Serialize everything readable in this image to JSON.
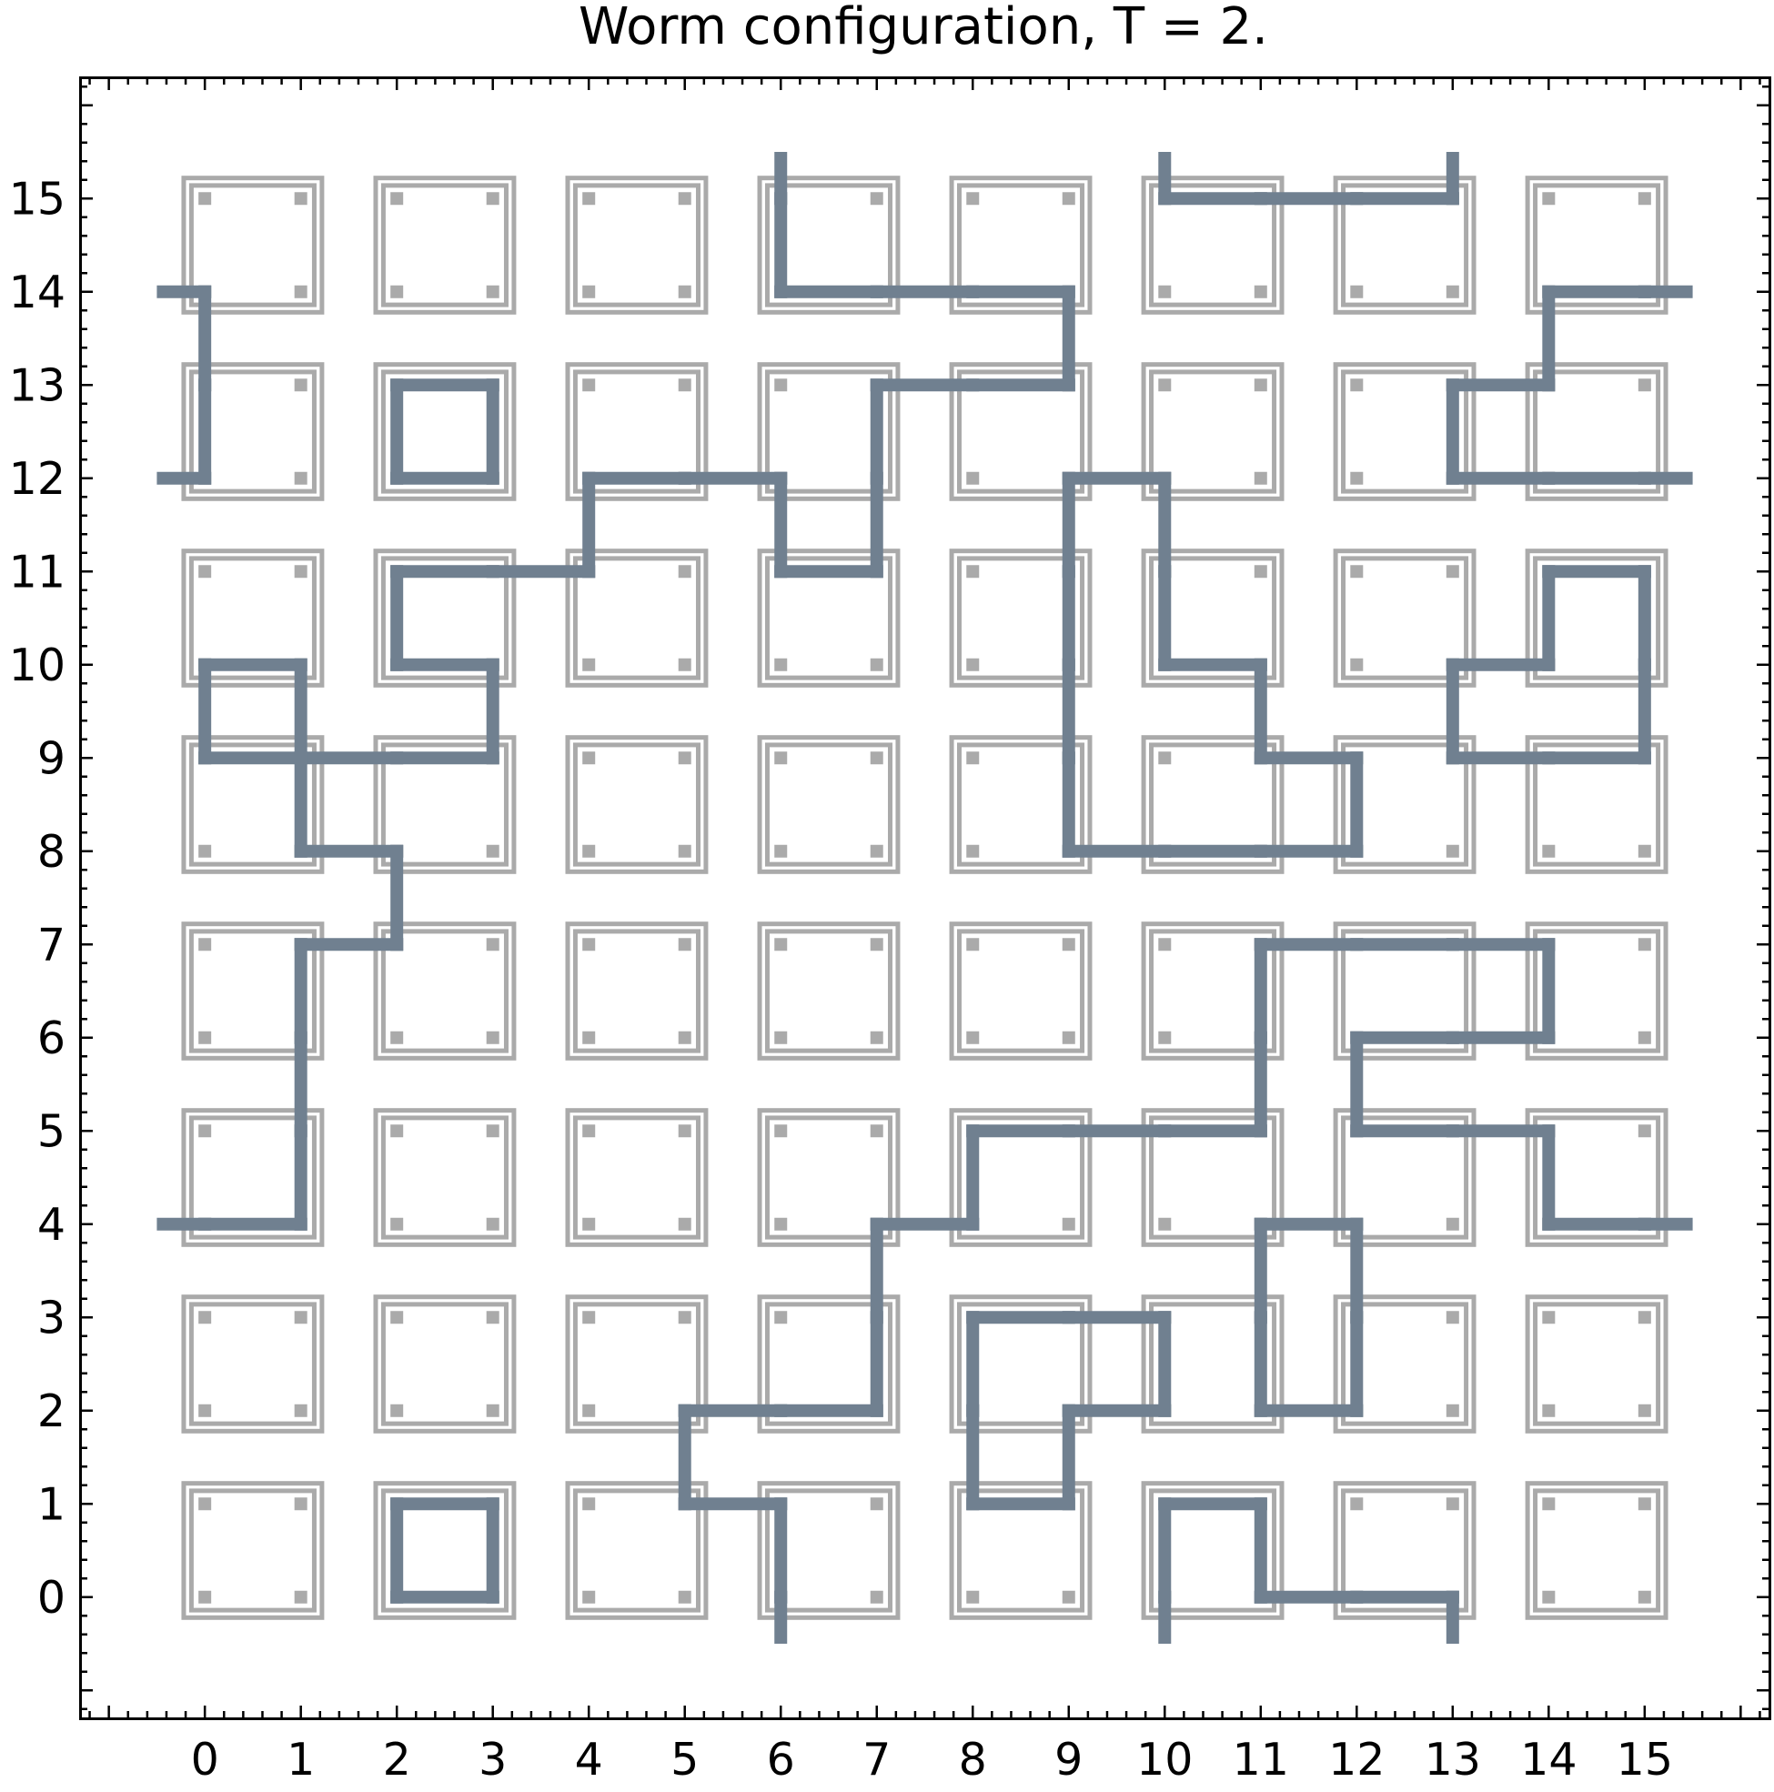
{
  "chart_data": {
    "type": "lattice-worm",
    "title": "Worm configuration, T = 2.",
    "lattice_size": 16,
    "xlim": [
      -1.3,
      16.3
    ],
    "ylim": [
      -1.3,
      16.3
    ],
    "xticks": [
      0,
      1,
      2,
      3,
      4,
      5,
      6,
      7,
      8,
      9,
      10,
      11,
      12,
      13,
      14,
      15
    ],
    "yticks": [
      0,
      1,
      2,
      3,
      4,
      5,
      6,
      7,
      8,
      9,
      10,
      11,
      12,
      13,
      14,
      15
    ],
    "xtick_labels": [
      "0",
      "1",
      "2",
      "3",
      "4",
      "5",
      "6",
      "7",
      "8",
      "9",
      "10",
      "11",
      "12",
      "13",
      "14",
      "15"
    ],
    "ytick_labels": [
      "0",
      "1",
      "2",
      "3",
      "4",
      "5",
      "6",
      "7",
      "8",
      "9",
      "10",
      "11",
      "12",
      "13",
      "14",
      "15"
    ],
    "colors": {
      "worm": "#708090",
      "plaquette": "#aaaaaa",
      "frame": "#000000"
    },
    "plaquettes": {
      "description_cells_x": [
        0,
        2,
        4,
        6,
        8,
        10,
        12,
        14
      ],
      "description_cells_y": [
        0,
        2,
        4,
        6,
        8,
        10,
        12,
        14
      ]
    },
    "worm_segments": [
      [
        [
          -0.5,
          14
        ],
        [
          0,
          14
        ]
      ],
      [
        [
          0,
          14
        ],
        [
          0,
          13
        ]
      ],
      [
        [
          0,
          13
        ],
        [
          0,
          12
        ]
      ],
      [
        [
          0,
          12
        ],
        [
          -0.5,
          12
        ]
      ],
      [
        [
          2,
          13
        ],
        [
          3,
          13
        ]
      ],
      [
        [
          3,
          13
        ],
        [
          3,
          12
        ]
      ],
      [
        [
          3,
          12
        ],
        [
          2,
          12
        ]
      ],
      [
        [
          2,
          12
        ],
        [
          2,
          13
        ]
      ],
      [
        [
          6,
          15.5
        ],
        [
          6,
          15
        ]
      ],
      [
        [
          6,
          15
        ],
        [
          6,
          14
        ]
      ],
      [
        [
          6,
          14
        ],
        [
          7,
          14
        ]
      ],
      [
        [
          7,
          14
        ],
        [
          8,
          14
        ]
      ],
      [
        [
          8,
          14
        ],
        [
          9,
          14
        ]
      ],
      [
        [
          9,
          14
        ],
        [
          9,
          13
        ]
      ],
      [
        [
          9,
          13
        ],
        [
          8,
          13
        ]
      ],
      [
        [
          8,
          13
        ],
        [
          7,
          13
        ]
      ],
      [
        [
          7,
          13
        ],
        [
          7,
          12
        ]
      ],
      [
        [
          7,
          12
        ],
        [
          7,
          11
        ]
      ],
      [
        [
          7,
          11
        ],
        [
          6,
          11
        ]
      ],
      [
        [
          6,
          11
        ],
        [
          6,
          12
        ]
      ],
      [
        [
          6,
          12
        ],
        [
          5,
          12
        ]
      ],
      [
        [
          5,
          12
        ],
        [
          4,
          12
        ]
      ],
      [
        [
          4,
          12
        ],
        [
          4,
          11
        ]
      ],
      [
        [
          4,
          11
        ],
        [
          3,
          11
        ]
      ],
      [
        [
          3,
          11
        ],
        [
          2,
          11
        ]
      ],
      [
        [
          2,
          11
        ],
        [
          2,
          10
        ]
      ],
      [
        [
          2,
          10
        ],
        [
          3,
          10
        ]
      ],
      [
        [
          3,
          10
        ],
        [
          3,
          9
        ]
      ],
      [
        [
          3,
          9
        ],
        [
          2,
          9
        ]
      ],
      [
        [
          2,
          9
        ],
        [
          1,
          9
        ]
      ],
      [
        [
          1,
          9
        ],
        [
          0,
          9
        ]
      ],
      [
        [
          0,
          9
        ],
        [
          0,
          10
        ]
      ],
      [
        [
          0,
          10
        ],
        [
          1,
          10
        ]
      ],
      [
        [
          1,
          10
        ],
        [
          1,
          9
        ]
      ],
      [
        [
          1,
          9
        ],
        [
          1,
          8
        ]
      ],
      [
        [
          1,
          8
        ],
        [
          2,
          8
        ]
      ],
      [
        [
          2,
          8
        ],
        [
          2,
          7
        ]
      ],
      [
        [
          2,
          7
        ],
        [
          1,
          7
        ]
      ],
      [
        [
          1,
          7
        ],
        [
          1,
          6
        ]
      ],
      [
        [
          1,
          6
        ],
        [
          1,
          5
        ]
      ],
      [
        [
          1,
          5
        ],
        [
          1,
          4
        ]
      ],
      [
        [
          1,
          4
        ],
        [
          0,
          4
        ]
      ],
      [
        [
          0,
          4
        ],
        [
          -0.5,
          4
        ]
      ],
      [
        [
          10,
          15.5
        ],
        [
          10,
          15
        ]
      ],
      [
        [
          10,
          15
        ],
        [
          11,
          15
        ]
      ],
      [
        [
          11,
          15
        ],
        [
          12,
          15
        ]
      ],
      [
        [
          12,
          15
        ],
        [
          13,
          15
        ]
      ],
      [
        [
          13,
          15
        ],
        [
          13,
          15.5
        ]
      ],
      [
        [
          15.5,
          14
        ],
        [
          15,
          14
        ]
      ],
      [
        [
          15,
          14
        ],
        [
          14,
          14
        ]
      ],
      [
        [
          14,
          14
        ],
        [
          14,
          13
        ]
      ],
      [
        [
          14,
          13
        ],
        [
          13,
          13
        ]
      ],
      [
        [
          13,
          13
        ],
        [
          13,
          12
        ]
      ],
      [
        [
          13,
          12
        ],
        [
          14,
          12
        ]
      ],
      [
        [
          14,
          12
        ],
        [
          15,
          12
        ]
      ],
      [
        [
          15,
          12
        ],
        [
          15.5,
          12
        ]
      ],
      [
        [
          9,
          12
        ],
        [
          10,
          12
        ]
      ],
      [
        [
          10,
          12
        ],
        [
          10,
          11
        ]
      ],
      [
        [
          10,
          11
        ],
        [
          10,
          10
        ]
      ],
      [
        [
          10,
          10
        ],
        [
          11,
          10
        ]
      ],
      [
        [
          11,
          10
        ],
        [
          11,
          9
        ]
      ],
      [
        [
          11,
          9
        ],
        [
          12,
          9
        ]
      ],
      [
        [
          12,
          9
        ],
        [
          12,
          8
        ]
      ],
      [
        [
          12,
          8
        ],
        [
          11,
          8
        ]
      ],
      [
        [
          11,
          8
        ],
        [
          10,
          8
        ]
      ],
      [
        [
          10,
          8
        ],
        [
          9,
          8
        ]
      ],
      [
        [
          9,
          8
        ],
        [
          9,
          9
        ]
      ],
      [
        [
          9,
          9
        ],
        [
          9,
          10
        ]
      ],
      [
        [
          9,
          10
        ],
        [
          9,
          11
        ]
      ],
      [
        [
          9,
          11
        ],
        [
          9,
          12
        ]
      ],
      [
        [
          14,
          11
        ],
        [
          15,
          11
        ]
      ],
      [
        [
          15,
          11
        ],
        [
          15,
          10
        ]
      ],
      [
        [
          15,
          10
        ],
        [
          15,
          9
        ]
      ],
      [
        [
          15,
          9
        ],
        [
          14,
          9
        ]
      ],
      [
        [
          14,
          9
        ],
        [
          13,
          9
        ]
      ],
      [
        [
          13,
          9
        ],
        [
          13,
          10
        ]
      ],
      [
        [
          13,
          10
        ],
        [
          14,
          10
        ]
      ],
      [
        [
          14,
          10
        ],
        [
          14,
          11
        ]
      ],
      [
        [
          15.5,
          4
        ],
        [
          15,
          4
        ]
      ],
      [
        [
          15,
          4
        ],
        [
          14,
          4
        ]
      ],
      [
        [
          14,
          4
        ],
        [
          14,
          5
        ]
      ],
      [
        [
          14,
          5
        ],
        [
          13,
          5
        ]
      ],
      [
        [
          13,
          5
        ],
        [
          12,
          5
        ]
      ],
      [
        [
          12,
          5
        ],
        [
          12,
          6
        ]
      ],
      [
        [
          12,
          6
        ],
        [
          13,
          6
        ]
      ],
      [
        [
          13,
          6
        ],
        [
          14,
          6
        ]
      ],
      [
        [
          14,
          6
        ],
        [
          14,
          7
        ]
      ],
      [
        [
          14,
          7
        ],
        [
          13,
          7
        ]
      ],
      [
        [
          13,
          7
        ],
        [
          12,
          7
        ]
      ],
      [
        [
          12,
          7
        ],
        [
          11,
          7
        ]
      ],
      [
        [
          11,
          7
        ],
        [
          11,
          6
        ]
      ],
      [
        [
          11,
          6
        ],
        [
          11,
          5
        ]
      ],
      [
        [
          11,
          5
        ],
        [
          10,
          5
        ]
      ],
      [
        [
          10,
          5
        ],
        [
          9,
          5
        ]
      ],
      [
        [
          9,
          5
        ],
        [
          8,
          5
        ]
      ],
      [
        [
          8,
          5
        ],
        [
          8,
          4
        ]
      ],
      [
        [
          8,
          4
        ],
        [
          7,
          4
        ]
      ],
      [
        [
          7,
          4
        ],
        [
          7,
          3
        ]
      ],
      [
        [
          7,
          3
        ],
        [
          7,
          2
        ]
      ],
      [
        [
          7,
          2
        ],
        [
          6,
          2
        ]
      ],
      [
        [
          6,
          2
        ],
        [
          5,
          2
        ]
      ],
      [
        [
          5,
          2
        ],
        [
          5,
          1
        ]
      ],
      [
        [
          5,
          1
        ],
        [
          6,
          1
        ]
      ],
      [
        [
          6,
          1
        ],
        [
          6,
          0
        ]
      ],
      [
        [
          6,
          0
        ],
        [
          6,
          -0.5
        ]
      ],
      [
        [
          8,
          3
        ],
        [
          9,
          3
        ]
      ],
      [
        [
          9,
          3
        ],
        [
          10,
          3
        ]
      ],
      [
        [
          10,
          3
        ],
        [
          10,
          2
        ]
      ],
      [
        [
          10,
          2
        ],
        [
          9,
          2
        ]
      ],
      [
        [
          9,
          2
        ],
        [
          9,
          1
        ]
      ],
      [
        [
          9,
          1
        ],
        [
          8,
          1
        ]
      ],
      [
        [
          8,
          1
        ],
        [
          8,
          2
        ]
      ],
      [
        [
          8,
          2
        ],
        [
          8,
          3
        ]
      ],
      [
        [
          11,
          4
        ],
        [
          12,
          4
        ]
      ],
      [
        [
          12,
          4
        ],
        [
          12,
          3
        ]
      ],
      [
        [
          12,
          3
        ],
        [
          12,
          2
        ]
      ],
      [
        [
          12,
          2
        ],
        [
          11,
          2
        ]
      ],
      [
        [
          11,
          2
        ],
        [
          11,
          3
        ]
      ],
      [
        [
          11,
          3
        ],
        [
          11,
          4
        ]
      ],
      [
        [
          2,
          1
        ],
        [
          3,
          1
        ]
      ],
      [
        [
          3,
          1
        ],
        [
          3,
          0
        ]
      ],
      [
        [
          3,
          0
        ],
        [
          2,
          0
        ]
      ],
      [
        [
          2,
          0
        ],
        [
          2,
          1
        ]
      ],
      [
        [
          10,
          -0.5
        ],
        [
          10,
          0
        ]
      ],
      [
        [
          10,
          0
        ],
        [
          10,
          1
        ]
      ],
      [
        [
          10,
          1
        ],
        [
          11,
          1
        ]
      ],
      [
        [
          11,
          1
        ],
        [
          11,
          0
        ]
      ],
      [
        [
          11,
          0
        ],
        [
          12,
          0
        ]
      ],
      [
        [
          12,
          0
        ],
        [
          13,
          0
        ]
      ],
      [
        [
          13,
          0
        ],
        [
          13,
          -0.5
        ]
      ]
    ]
  }
}
